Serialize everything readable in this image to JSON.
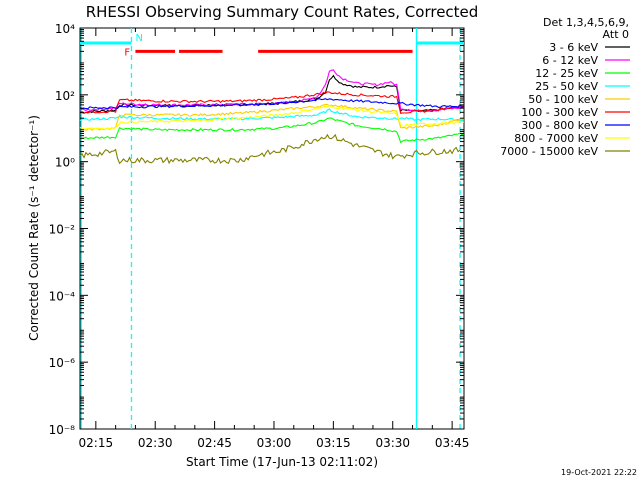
{
  "chart_data": {
    "type": "line",
    "title": "RHESSI Observing Summary Count Rates, Corrected",
    "xlabel": "Start Time (17-Jun-13 02:11:02)",
    "ylabel": "Corrected Count Rate (s⁻¹ detector⁻¹)",
    "yscale": "log",
    "ylim": [
      1e-08,
      10000.0
    ],
    "xlim_minutes": [
      0,
      97
    ],
    "x_ticks": [
      {
        "m": 4,
        "label": "02:15"
      },
      {
        "m": 19,
        "label": "02:30"
      },
      {
        "m": 34,
        "label": "02:45"
      },
      {
        "m": 49,
        "label": "03:00"
      },
      {
        "m": 64,
        "label": "03:15"
      },
      {
        "m": 79,
        "label": "03:30"
      },
      {
        "m": 94,
        "label": "03:45"
      }
    ],
    "y_ticks": [
      {
        "exp": -8,
        "label": "10⁻⁸"
      },
      {
        "exp": -6,
        "label": "10⁻⁶"
      },
      {
        "exp": -4,
        "label": "10⁻⁴"
      },
      {
        "exp": -2,
        "label": "10⁻²"
      },
      {
        "exp": 0,
        "label": "10⁰"
      },
      {
        "exp": 2,
        "label": "10²"
      },
      {
        "exp": 4,
        "label": "10⁴"
      }
    ],
    "legend": {
      "position": "right",
      "header": [
        "Det 1,3,4,5,6,9,",
        "Att 0"
      ]
    },
    "series": [
      {
        "name": "3 - 6 keV",
        "color": "#000000",
        "points": [
          [
            0,
            30
          ],
          [
            9,
            35
          ],
          [
            10,
            50
          ],
          [
            20,
            48
          ],
          [
            30,
            48
          ],
          [
            40,
            50
          ],
          [
            50,
            55
          ],
          [
            57,
            68
          ],
          [
            60,
            80
          ],
          [
            62,
            120
          ],
          [
            63,
            290
          ],
          [
            64,
            360
          ],
          [
            66,
            220
          ],
          [
            70,
            170
          ],
          [
            75,
            170
          ],
          [
            78,
            190
          ],
          [
            80,
            170
          ],
          [
            81,
            35
          ],
          [
            85,
            32
          ],
          [
            90,
            35
          ],
          [
            97,
            44
          ]
        ]
      },
      {
        "name": "6 - 12 keV",
        "color": "#ff00ff",
        "points": [
          [
            0,
            35
          ],
          [
            9,
            40
          ],
          [
            10,
            55
          ],
          [
            20,
            50
          ],
          [
            30,
            50
          ],
          [
            40,
            52
          ],
          [
            50,
            55
          ],
          [
            57,
            70
          ],
          [
            60,
            90
          ],
          [
            62,
            200
          ],
          [
            63,
            500
          ],
          [
            64,
            560
          ],
          [
            66,
            320
          ],
          [
            70,
            220
          ],
          [
            75,
            200
          ],
          [
            78,
            240
          ],
          [
            80,
            200
          ],
          [
            81,
            40
          ],
          [
            85,
            33
          ],
          [
            90,
            35
          ],
          [
            97,
            42
          ]
        ]
      },
      {
        "name": "12 - 25 keV",
        "color": "#00ff00",
        "points": [
          [
            0,
            5
          ],
          [
            9,
            5.5
          ],
          [
            10,
            10
          ],
          [
            20,
            9
          ],
          [
            30,
            9
          ],
          [
            40,
            9
          ],
          [
            50,
            10
          ],
          [
            55,
            12
          ],
          [
            60,
            15
          ],
          [
            63,
            20
          ],
          [
            65,
            17
          ],
          [
            70,
            12
          ],
          [
            78,
            9
          ],
          [
            80,
            8
          ],
          [
            81,
            4
          ],
          [
            85,
            4.5
          ],
          [
            90,
            5
          ],
          [
            97,
            7
          ]
        ]
      },
      {
        "name": "25 - 50 keV",
        "color": "#00ffff",
        "points": [
          [
            0,
            18
          ],
          [
            9,
            20
          ],
          [
            10,
            22
          ],
          [
            20,
            20
          ],
          [
            30,
            19
          ],
          [
            40,
            19
          ],
          [
            50,
            21
          ],
          [
            55,
            23
          ],
          [
            60,
            25
          ],
          [
            63,
            35
          ],
          [
            65,
            30
          ],
          [
            70,
            22
          ],
          [
            78,
            20
          ],
          [
            80,
            19
          ],
          [
            81,
            20
          ],
          [
            85,
            18
          ],
          [
            90,
            19
          ],
          [
            97,
            18
          ]
        ]
      },
      {
        "name": "50 - 100 keV",
        "color": "#ffcc00",
        "points": [
          [
            0,
            9
          ],
          [
            9,
            10
          ],
          [
            10,
            25
          ],
          [
            20,
            25
          ],
          [
            30,
            25
          ],
          [
            40,
            28
          ],
          [
            50,
            35
          ],
          [
            55,
            40
          ],
          [
            60,
            45
          ],
          [
            63,
            50
          ],
          [
            65,
            48
          ],
          [
            70,
            40
          ],
          [
            78,
            33
          ],
          [
            80,
            32
          ],
          [
            81,
            10
          ],
          [
            85,
            11
          ],
          [
            90,
            12
          ],
          [
            97,
            20
          ]
        ]
      },
      {
        "name": "100 - 300 keV",
        "color": "#ff0000",
        "points": [
          [
            0,
            30
          ],
          [
            9,
            32
          ],
          [
            10,
            70
          ],
          [
            20,
            65
          ],
          [
            30,
            63
          ],
          [
            40,
            65
          ],
          [
            50,
            75
          ],
          [
            55,
            85
          ],
          [
            60,
            105
          ],
          [
            63,
            120
          ],
          [
            65,
            110
          ],
          [
            70,
            100
          ],
          [
            78,
            90
          ],
          [
            80,
            88
          ],
          [
            81,
            30
          ],
          [
            85,
            31
          ],
          [
            90,
            35
          ],
          [
            97,
            50
          ]
        ]
      },
      {
        "name": "300 - 800 keV",
        "color": "#0000ff",
        "points": [
          [
            0,
            40
          ],
          [
            9,
            42
          ],
          [
            10,
            43
          ],
          [
            20,
            45
          ],
          [
            30,
            47
          ],
          [
            40,
            50
          ],
          [
            50,
            55
          ],
          [
            55,
            62
          ],
          [
            60,
            70
          ],
          [
            63,
            75
          ],
          [
            65,
            72
          ],
          [
            70,
            65
          ],
          [
            78,
            58
          ],
          [
            80,
            56
          ],
          [
            81,
            55
          ],
          [
            85,
            50
          ],
          [
            90,
            45
          ],
          [
            97,
            45
          ]
        ]
      },
      {
        "name": "800 - 7000 keV",
        "color": "#ffff00",
        "points": [
          [
            0,
            10
          ],
          [
            9,
            10
          ],
          [
            10,
            15
          ],
          [
            20,
            16
          ],
          [
            30,
            17
          ],
          [
            40,
            20
          ],
          [
            50,
            25
          ],
          [
            55,
            30
          ],
          [
            60,
            40
          ],
          [
            63,
            45
          ],
          [
            65,
            42
          ],
          [
            70,
            35
          ],
          [
            78,
            28
          ],
          [
            80,
            27
          ],
          [
            81,
            12
          ],
          [
            85,
            13
          ],
          [
            90,
            14
          ],
          [
            97,
            15
          ]
        ]
      },
      {
        "name": "7000 - 15000 keV",
        "color": "#808000",
        "points": [
          [
            0,
            1.5
          ],
          [
            9,
            2
          ],
          [
            10,
            1.1
          ],
          [
            20,
            1.1
          ],
          [
            30,
            1.1
          ],
          [
            40,
            1.1
          ],
          [
            45,
            1.6
          ],
          [
            50,
            2
          ],
          [
            55,
            3
          ],
          [
            60,
            5
          ],
          [
            63,
            6
          ],
          [
            65,
            5
          ],
          [
            70,
            3
          ],
          [
            75,
            2
          ],
          [
            78,
            1.6
          ],
          [
            80,
            1.4
          ],
          [
            81,
            1.5
          ],
          [
            85,
            1.8
          ],
          [
            90,
            2
          ],
          [
            96,
            2.2
          ]
        ]
      }
    ],
    "flag_bars": [
      {
        "label": "F",
        "color": "#ff0000",
        "level_exp": 3.3,
        "segments": [
          [
            14,
            24
          ],
          [
            25,
            36
          ],
          [
            45,
            84
          ]
        ]
      },
      {
        "label": "N",
        "color": "#00ffff",
        "level_exp": 3.55,
        "segments": [
          [
            0,
            13
          ],
          [
            85,
            97
          ]
        ]
      }
    ],
    "vertical_lines": [
      {
        "m": 13,
        "color": "#00ffff",
        "style": "dashed"
      },
      {
        "m": 85,
        "color": "#00ffff",
        "style": "solid"
      },
      {
        "m": 96,
        "color": "#00ffff",
        "style": "dashed"
      },
      {
        "m": 0.3,
        "color": "#00ffff",
        "style": "solid"
      }
    ]
  },
  "footer": {
    "timestamp": "19-Oct-2021 22:22"
  }
}
